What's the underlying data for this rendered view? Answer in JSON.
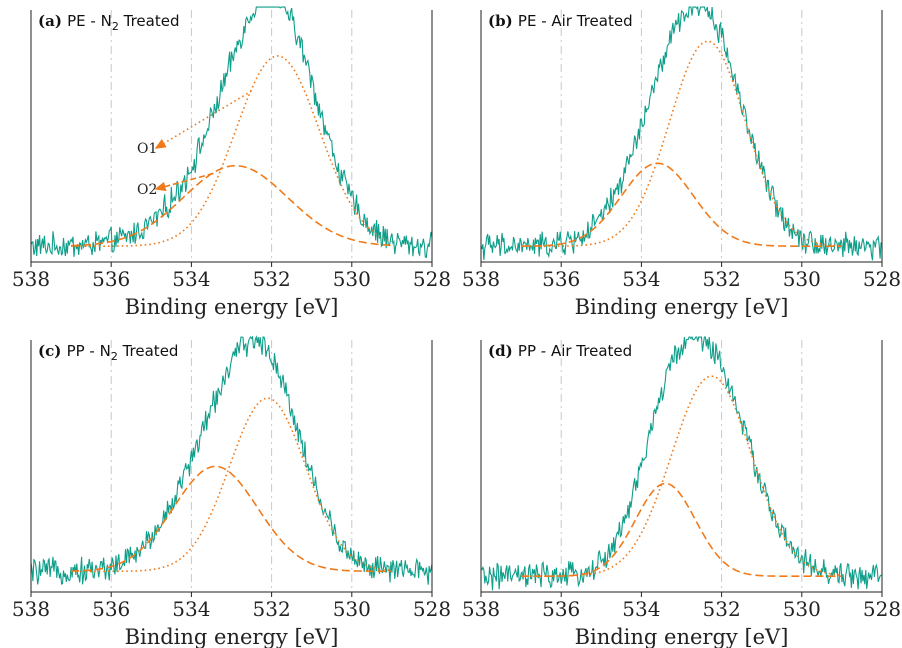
{
  "colors": {
    "raw": "#0e9e8a",
    "o1": "#f07a1a",
    "o2": "#f07a1a",
    "grid": "#c8c8c8",
    "axis": "#222222"
  },
  "chart_data": [
    {
      "type": "line",
      "panel_letter": "(a)",
      "title_prefix": "PE - N",
      "title_subscript": "2",
      "title_suffix": " Treated",
      "xlabel": "Binding energy [eV]",
      "ylabel": "",
      "xlim": [
        538,
        528
      ],
      "x_reversed": true,
      "xticks": [
        538,
        536,
        534,
        532,
        530,
        528
      ],
      "grid_x": [
        536,
        534,
        532,
        530
      ],
      "grid": true,
      "annotations": [
        {
          "text": "O1",
          "points_to": "O1 component",
          "x": 532.5
        },
        {
          "text": "O2",
          "points_to": "O2 component",
          "x": 533.3
        }
      ],
      "series": [
        {
          "name": "O1",
          "style": "dotted",
          "center": 531.85,
          "sigma": 1.05,
          "amplitude": 0.78
        },
        {
          "name": "O2",
          "style": "dashed",
          "center": 532.9,
          "sigma": 1.3,
          "amplitude": 0.33
        },
        {
          "name": "",
          "style": "solid-noisy",
          "description": "measured spectrum",
          "baseline": 0.04
        }
      ]
    },
    {
      "type": "line",
      "panel_letter": "(b)",
      "title_prefix": "PE - Air Treated",
      "title_subscript": "",
      "title_suffix": "",
      "xlabel": "Binding energy [eV]",
      "ylabel": "",
      "xlim": [
        538,
        528
      ],
      "x_reversed": true,
      "xticks": [
        538,
        536,
        534,
        532,
        530,
        528
      ],
      "grid_x": [
        536,
        534,
        532,
        530
      ],
      "grid": true,
      "annotations": [],
      "series": [
        {
          "name": "O1",
          "style": "dotted",
          "center": 532.35,
          "sigma": 0.95,
          "amplitude": 0.84
        },
        {
          "name": "O2",
          "style": "dashed",
          "center": 533.6,
          "sigma": 0.9,
          "amplitude": 0.34
        },
        {
          "name": "",
          "style": "solid-noisy",
          "description": "measured spectrum",
          "baseline": 0.04
        }
      ]
    },
    {
      "type": "line",
      "panel_letter": "(c)",
      "title_prefix": "PP - N",
      "title_subscript": "2",
      "title_suffix": " Treated",
      "xlabel": "Binding energy [eV]",
      "ylabel": "",
      "xlim": [
        538,
        528
      ],
      "x_reversed": true,
      "xticks": [
        538,
        536,
        534,
        532,
        530,
        528
      ],
      "grid_x": [
        536,
        534,
        532,
        530
      ],
      "grid": true,
      "annotations": [],
      "series": [
        {
          "name": "O1",
          "style": "dotted",
          "center": 532.1,
          "sigma": 0.95,
          "amplitude": 0.71
        },
        {
          "name": "O2",
          "style": "dashed",
          "center": 533.4,
          "sigma": 1.05,
          "amplitude": 0.43
        },
        {
          "name": "",
          "style": "solid-noisy",
          "description": "measured spectrum",
          "baseline": 0.06
        }
      ]
    },
    {
      "type": "line",
      "panel_letter": "(d)",
      "title_prefix": "PP - Air Treated",
      "title_subscript": "",
      "title_suffix": "",
      "xlabel": "Binding energy [eV]",
      "ylabel": "",
      "xlim": [
        538,
        528
      ],
      "x_reversed": true,
      "xticks": [
        538,
        536,
        534,
        532,
        530,
        528
      ],
      "grid_x": [
        536,
        532,
        530
      ],
      "grid": true,
      "annotations": [],
      "series": [
        {
          "name": "O1",
          "style": "dotted",
          "center": 532.25,
          "sigma": 1.0,
          "amplitude": 0.82
        },
        {
          "name": "O2",
          "style": "dashed",
          "center": 533.4,
          "sigma": 0.75,
          "amplitude": 0.38
        },
        {
          "name": "",
          "style": "solid-noisy",
          "description": "measured spectrum",
          "baseline": 0.04
        }
      ]
    }
  ]
}
